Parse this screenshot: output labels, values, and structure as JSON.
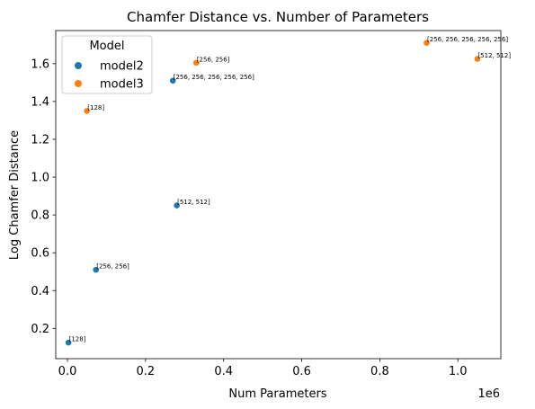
{
  "chart_data": {
    "type": "scatter",
    "title": "Chamfer Distance vs. Number of Parameters",
    "xlabel": "Num Parameters",
    "ylabel": "Log Chamfer Distance",
    "x_offset_label": "1e6",
    "xlim": [
      -0.03,
      1.11
    ],
    "ylim": [
      0.04,
      1.775
    ],
    "x_ticks": [
      {
        "value": 0.0,
        "label": "0.0"
      },
      {
        "value": 0.2,
        "label": "0.2"
      },
      {
        "value": 0.4,
        "label": "0.4"
      },
      {
        "value": 0.6,
        "label": "0.6"
      },
      {
        "value": 0.8,
        "label": "0.8"
      },
      {
        "value": 1.0,
        "label": "1.0"
      }
    ],
    "y_ticks": [
      {
        "value": 0.2,
        "label": "0.2"
      },
      {
        "value": 0.4,
        "label": "0.4"
      },
      {
        "value": 0.6,
        "label": "0.6"
      },
      {
        "value": 0.8,
        "label": "0.8"
      },
      {
        "value": 1.0,
        "label": "1.0"
      },
      {
        "value": 1.2,
        "label": "1.2"
      },
      {
        "value": 1.4,
        "label": "1.4"
      },
      {
        "value": 1.6,
        "label": "1.6"
      }
    ],
    "grid": false,
    "legend": {
      "title": "Model",
      "placement": "top-left"
    },
    "series": [
      {
        "name": "model2",
        "color": "#1f77b4",
        "points": [
          {
            "x": 0.0025,
            "y": 0.125,
            "label": "[128]"
          },
          {
            "x": 0.073,
            "y": 0.51,
            "label": "[256, 256]"
          },
          {
            "x": 0.28,
            "y": 0.85,
            "label": "[512, 512]"
          },
          {
            "x": 0.27,
            "y": 1.51,
            "label": "[256, 256, 256, 256, 256]"
          }
        ]
      },
      {
        "name": "model3",
        "color": "#ff7f0e",
        "points": [
          {
            "x": 0.05,
            "y": 1.35,
            "label": "[128]"
          },
          {
            "x": 0.33,
            "y": 1.605,
            "label": "[256, 256]"
          },
          {
            "x": 0.92,
            "y": 1.71,
            "label": "[256, 256, 256, 256, 256]"
          },
          {
            "x": 1.05,
            "y": 1.625,
            "label": "[512, 512]"
          }
        ]
      }
    ]
  }
}
